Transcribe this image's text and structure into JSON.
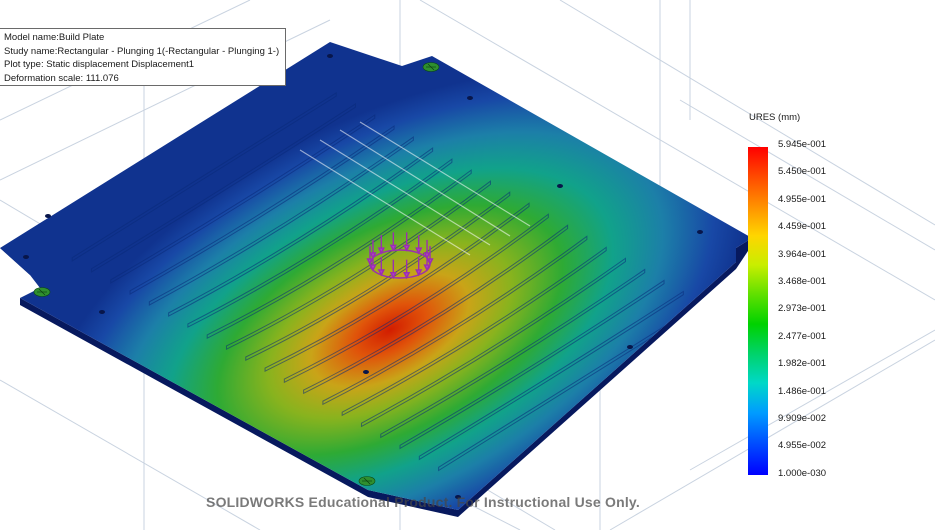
{
  "info": {
    "model_name": "Model name:Build Plate",
    "study_name": "Study name:Rectangular - Plunging 1(-Rectangular - Plunging 1-)",
    "plot_type": "Plot type: Static displacement Displacement1",
    "deformation_scale": "Deformation scale: 111.076"
  },
  "legend": {
    "title": "URES (mm)",
    "ticks": [
      "5.945e-001",
      "5.450e-001",
      "4.955e-001",
      "4.459e-001",
      "3.964e-001",
      "3.468e-001",
      "2.973e-001",
      "2.477e-001",
      "1.982e-001",
      "1.486e-001",
      "9.909e-002",
      "4.955e-002",
      "1.000e-030"
    ],
    "colors": [
      "#ff0000",
      "#ff9000",
      "#ffd500",
      "#5fe000",
      "#00d200",
      "#00d8c8",
      "#009cff",
      "#0000ff"
    ]
  },
  "watermark": "SOLIDWORKS Educational Product. For Instructional Use Only.",
  "plot": {
    "plate_color": "#0e2e94",
    "fixture_color": "#2f8f2f",
    "load_color": "#9a2fb0"
  }
}
